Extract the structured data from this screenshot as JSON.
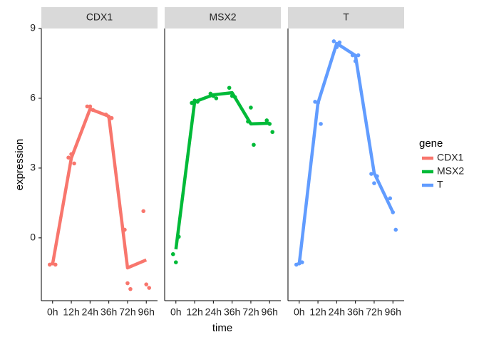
{
  "chart_data": [
    {
      "type": "line",
      "title": "CDX1",
      "ylabel": "expression",
      "xlabel": "time",
      "legend_title": "gene",
      "categories": [
        "0h",
        "12h",
        "24h",
        "36h",
        "72h",
        "96h"
      ],
      "ylim": [
        -2.7,
        9
      ],
      "yticks": [
        0,
        3,
        6,
        9
      ],
      "series": [
        {
          "name": "CDX1",
          "color": "#f8766d",
          "values": [
            -1.13,
            3.43,
            5.54,
            5.23,
            -1.29,
            -0.95
          ],
          "points": [
            [
              -1.15,
              -1.1,
              -1.15
            ],
            [
              3.45,
              3.6,
              3.2
            ],
            [
              5.65,
              5.65,
              5.5
            ],
            [
              5.3,
              5.2,
              5.15
            ],
            [
              0.35,
              -1.95,
              -2.2
            ],
            [
              1.15,
              -2.0,
              -2.15
            ]
          ]
        }
      ]
    },
    {
      "type": "line",
      "title": "MSX2",
      "categories": [
        "0h",
        "12h",
        "24h",
        "36h",
        "72h",
        "96h"
      ],
      "series": [
        {
          "name": "MSX2",
          "color": "#00ba38",
          "values": [
            -0.49,
            5.85,
            6.15,
            6.24,
            4.9,
            4.93
          ],
          "points": [
            [
              -0.7,
              -1.05,
              0.05
            ],
            [
              5.8,
              5.9,
              5.85
            ],
            [
              6.2,
              6.1,
              6.0
            ],
            [
              6.45,
              6.1,
              6.05
            ],
            [
              5.0,
              5.6,
              4.0
            ],
            [
              5.05,
              4.9,
              4.55
            ]
          ]
        }
      ]
    },
    {
      "type": "line",
      "title": "T",
      "categories": [
        "0h",
        "12h",
        "24h",
        "36h",
        "72h",
        "96h"
      ],
      "series": [
        {
          "name": "T",
          "color": "#619cff",
          "values": [
            -1.13,
            5.79,
            8.36,
            7.84,
            2.79,
            1.1
          ],
          "points": [
            [
              -1.15,
              -1.1,
              -1.05
            ],
            [
              5.85,
              5.8,
              4.9
            ],
            [
              8.45,
              8.2,
              8.4
            ],
            [
              7.85,
              7.6,
              7.85
            ],
            [
              2.75,
              2.35,
              2.65
            ],
            [
              1.7,
              1.1,
              0.35
            ]
          ]
        }
      ]
    }
  ]
}
